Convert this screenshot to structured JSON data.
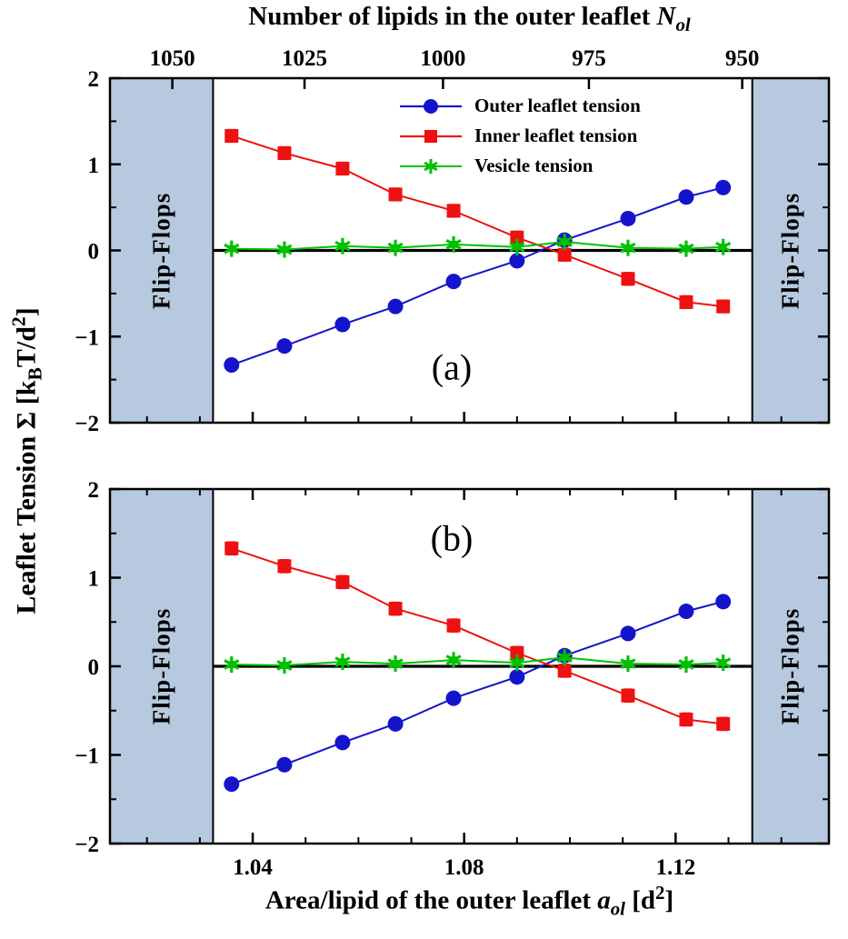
{
  "titles": {
    "top_axis": {
      "pre": "Number of lipids in the outer leaflet ",
      "var": "N",
      "sub": "ol"
    },
    "bottom_axis": {
      "pre": "Area/lipid of the outer leaflet ",
      "var": "a",
      "sub": "ol",
      "mid": " [d",
      "sup": "2",
      "post": "]"
    },
    "y_axis": {
      "pre": "Leaflet Tension Σ [k",
      "sub": "B",
      "mid": "T/d",
      "sup": "2",
      "post": "]"
    },
    "flip_flops": "Flip-Flops"
  },
  "colors": {
    "outer": "#1414cc",
    "inner": "#ee1111",
    "vesicle": "#00c000",
    "band": "#b6c9de",
    "axis": "#000000"
  },
  "chart_data": {
    "type": "line",
    "x_label": "Area/lipid of the outer leaflet a_ol [d^2]",
    "y_label": "Leaflet Tension Sigma [k_B T/d^2]",
    "top_axis_label": "Number of lipids in the outer leaflet N_ol",
    "x_range": [
      1.013,
      1.149
    ],
    "y_range": [
      -2,
      2
    ],
    "x_major_ticks": [
      1.04,
      1.08,
      1.12
    ],
    "x_tick_labels": [
      "1.04",
      "1.08",
      "1.12"
    ],
    "x_minor_ticks": [
      1.02,
      1.03,
      1.05,
      1.06,
      1.07,
      1.09,
      1.1,
      1.11,
      1.13,
      1.14
    ],
    "y_major_ticks": [
      2,
      1,
      0,
      -1,
      -2
    ],
    "y_tick_labels": [
      "2",
      "1",
      "0",
      "−1",
      "−2"
    ],
    "y_minor_ticks": [
      1.5,
      0.5,
      -0.5,
      -1.5
    ],
    "top_ticks": [
      {
        "label": "1050",
        "x": 1.0248
      },
      {
        "label": "1025",
        "x": 1.0498
      },
      {
        "label": "1000",
        "x": 1.076
      },
      {
        "label": "975",
        "x": 1.1036
      },
      {
        "label": "950",
        "x": 1.1326
      }
    ],
    "flip_flop_regions": [
      {
        "from": 1.013,
        "to": 1.0325
      },
      {
        "from": 1.1345,
        "to": 1.149
      }
    ],
    "zero_line_y": 0,
    "panels": [
      {
        "label": "(a)",
        "legend": true
      },
      {
        "label": "(b)",
        "legend": false
      }
    ],
    "x": [
      1.036,
      1.046,
      1.057,
      1.067,
      1.078,
      1.09,
      1.099,
      1.111,
      1.122,
      1.129
    ],
    "series": [
      {
        "name": "Outer leaflet tension",
        "marker": "circle",
        "color": "#1414cc",
        "values": [
          -1.33,
          -1.11,
          -0.86,
          -0.65,
          -0.36,
          -0.12,
          0.12,
          0.37,
          0.62,
          0.73
        ],
        "error": 0.06
      },
      {
        "name": "Inner leaflet tension",
        "marker": "square",
        "color": "#ee1111",
        "values": [
          1.33,
          1.13,
          0.95,
          0.65,
          0.46,
          0.15,
          -0.05,
          -0.33,
          -0.6,
          -0.65
        ],
        "error": 0.07
      },
      {
        "name": "Vesicle tension",
        "marker": "star",
        "color": "#00c000",
        "values": [
          0.02,
          0.01,
          0.05,
          0.03,
          0.07,
          0.04,
          0.1,
          0.03,
          0.02,
          0.04
        ],
        "error": 0.03
      }
    ]
  }
}
